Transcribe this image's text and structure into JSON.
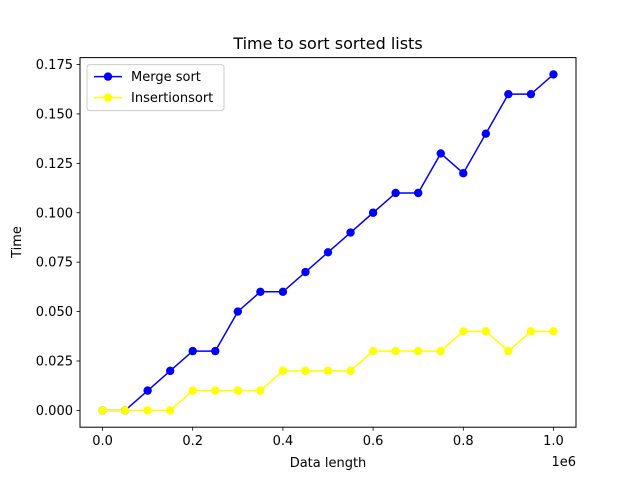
{
  "chart_data": {
    "type": "line",
    "title": "Time to sort sorted lists",
    "xlabel": "Data length",
    "ylabel": "Time",
    "x_offset_label": "1e6",
    "x_ticks": [
      "0.0",
      "0.2",
      "0.4",
      "0.6",
      "0.8",
      "1.0"
    ],
    "y_ticks": [
      "0.000",
      "0.025",
      "0.050",
      "0.075",
      "0.100",
      "0.125",
      "0.150",
      "0.175"
    ],
    "xlim": [
      -50000,
      1050000
    ],
    "ylim": [
      -0.0085,
      0.1785
    ],
    "grid": false,
    "legend_position": "top-left",
    "x": [
      0,
      50000,
      100000,
      150000,
      200000,
      250000,
      300000,
      350000,
      400000,
      450000,
      500000,
      550000,
      600000,
      650000,
      700000,
      750000,
      800000,
      850000,
      900000,
      950000,
      1000000
    ],
    "series": [
      {
        "name": "Merge sort",
        "color": "#0000ff",
        "values": [
          0,
          0,
          0.01,
          0.02,
          0.03,
          0.03,
          0.05,
          0.06,
          0.06,
          0.07,
          0.08,
          0.09,
          0.1,
          0.11,
          0.11,
          0.13,
          0.12,
          0.14,
          0.16,
          0.16,
          0.17
        ]
      },
      {
        "name": "Insertionsort",
        "color": "#ffff00",
        "values": [
          0,
          0,
          0,
          0,
          0.01,
          0.01,
          0.01,
          0.01,
          0.02,
          0.02,
          0.02,
          0.02,
          0.03,
          0.03,
          0.03,
          0.03,
          0.04,
          0.04,
          0.03,
          0.04,
          0.04
        ]
      }
    ]
  }
}
